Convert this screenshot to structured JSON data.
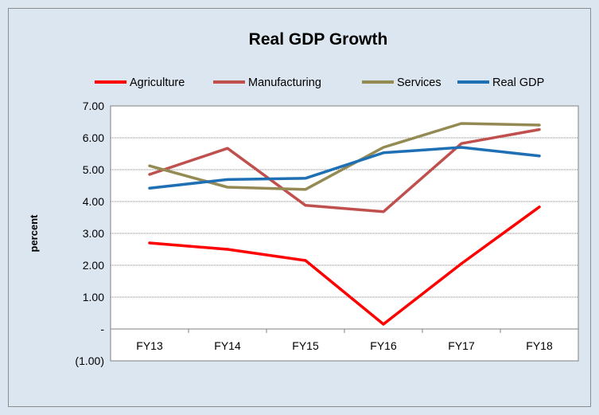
{
  "chart_data": {
    "type": "line",
    "title": "Real GDP Growth",
    "xlabel": "",
    "ylabel": "percent",
    "categories": [
      "FY13",
      "FY14",
      "FY15",
      "FY16",
      "FY17",
      "FY18"
    ],
    "ylim": [
      -1,
      7
    ],
    "y_ticks": [
      7,
      6,
      5,
      4,
      3,
      2,
      1,
      0,
      -1
    ],
    "y_tick_labels": [
      "7.00",
      "6.00",
      "5.00",
      "4.00",
      "3.00",
      "2.00",
      "1.00",
      "-",
      "(1.00)"
    ],
    "grid": true,
    "legend_position": "top",
    "series": [
      {
        "name": "Agriculture",
        "color": "#ff0000",
        "values": [
          2.7,
          2.5,
          2.15,
          0.15,
          2.05,
          3.83
        ]
      },
      {
        "name": "Manufacturing",
        "color": "#c0504d",
        "values": [
          4.85,
          5.67,
          3.88,
          3.68,
          5.82,
          6.26
        ]
      },
      {
        "name": "Services",
        "color": "#948a54",
        "values": [
          5.12,
          4.45,
          4.38,
          5.7,
          6.45,
          6.4
        ]
      },
      {
        "name": "Real GDP",
        "color": "#1f6fb5",
        "values": [
          4.42,
          4.69,
          4.73,
          5.53,
          5.7,
          5.43
        ]
      }
    ]
  }
}
